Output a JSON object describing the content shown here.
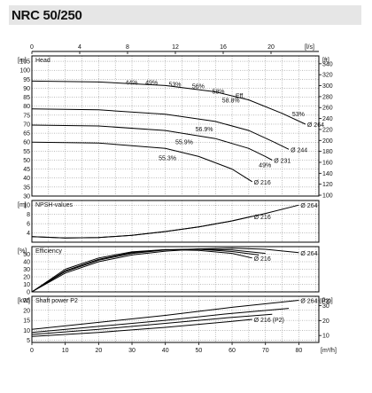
{
  "header": {
    "title": "NRC 50/250"
  },
  "chart_data": {
    "type": "line",
    "top_axis": {
      "label": "[l/s]",
      "range": [
        0,
        24
      ],
      "ticks": [
        "0",
        "4",
        "8",
        "12",
        "16",
        "20"
      ],
      "tick_values": [
        0,
        4,
        8,
        12,
        16,
        20
      ]
    },
    "bottom_axis": {
      "label": "[m³/h]",
      "range": [
        0,
        86
      ],
      "ticks": [
        "0",
        "10",
        "20",
        "30",
        "40",
        "50",
        "60",
        "70",
        "80"
      ],
      "tick_values": [
        0,
        10,
        20,
        30,
        40,
        50,
        60,
        70,
        80
      ]
    },
    "panels": [
      {
        "id": "head",
        "title": "Head",
        "left_unit": "[m]",
        "right_unit": "[ft]",
        "ylim": [
          30,
          108
        ],
        "left_ticks": [
          "30",
          "35",
          "40",
          "45",
          "50",
          "55",
          "60",
          "65",
          "70",
          "75",
          "80",
          "85",
          "90",
          "95",
          "100",
          "105"
        ],
        "left_tick_values": [
          30,
          35,
          40,
          45,
          50,
          55,
          60,
          65,
          70,
          75,
          80,
          85,
          90,
          95,
          100,
          105
        ],
        "right_ticks": [
          "100",
          "120",
          "140",
          "160",
          "180",
          "200",
          "220",
          "240",
          "260",
          "280",
          "300",
          "320",
          "340"
        ],
        "right_tick_values": [
          30.48,
          36.58,
          42.67,
          48.77,
          54.86,
          60.96,
          67.06,
          73.15,
          79.25,
          85.34,
          91.44,
          97.54,
          103.63
        ],
        "series": [
          {
            "name": "Ø 264",
            "x": [
              0,
              20,
              40,
              55,
              65,
              75,
              82
            ],
            "y": [
              94,
              93.5,
              91.5,
              88,
              83.5,
              76,
              70
            ]
          },
          {
            "name": "Ø 244",
            "x": [
              0,
              20,
              40,
              55,
              65,
              72,
              77
            ],
            "y": [
              78.5,
              78,
              75.5,
              71.5,
              66.5,
              60.5,
              56
            ]
          },
          {
            "name": "Ø 231",
            "x": [
              0,
              20,
              40,
              55,
              65,
              70,
              72
            ],
            "y": [
              69.5,
              69,
              66.5,
              62,
              56.5,
              52,
              50
            ]
          },
          {
            "name": "Ø 216",
            "x": [
              0,
              20,
              40,
              50,
              60,
              66
            ],
            "y": [
              60,
              59.5,
              56.5,
              52,
              45,
              38
            ]
          }
        ],
        "efficiency_labels": [
          {
            "text": "44%",
            "x": 28,
            "y": 92
          },
          {
            "text": "49%",
            "x": 34,
            "y": 92
          },
          {
            "text": "53%",
            "x": 41,
            "y": 91
          },
          {
            "text": "56%",
            "x": 48,
            "y": 90
          },
          {
            "text": "58%",
            "x": 54,
            "y": 87
          },
          {
            "text": "58.8%",
            "x": 57,
            "y": 82
          },
          {
            "text": "Eff.",
            "x": 61,
            "y": 84.5
          },
          {
            "text": "56.9%",
            "x": 49,
            "y": 66
          },
          {
            "text": "55.9%",
            "x": 43,
            "y": 59
          },
          {
            "text": "55.3%",
            "x": 38,
            "y": 50
          },
          {
            "text": "53%",
            "x": 78,
            "y": 74.5
          },
          {
            "text": "49%",
            "x": 68,
            "y": 46
          }
        ]
      },
      {
        "id": "npsh",
        "title": "NPSH-values",
        "left_unit": "[m]",
        "ylim": [
          2,
          11
        ],
        "left_ticks": [
          "4",
          "6",
          "8",
          "10"
        ],
        "left_tick_values": [
          4,
          6,
          8,
          10
        ],
        "series": [
          {
            "name": "Ø 264",
            "x": [
              0,
              10,
              20,
              30,
              40,
              50,
              60,
              70,
              80
            ],
            "y": [
              3.2,
              2.9,
              3.0,
              3.5,
              4.3,
              5.3,
              6.6,
              8.2,
              10.0
            ]
          },
          {
            "name": "Ø 216",
            "x": [
              0,
              10,
              20,
              30,
              40,
              50,
              60,
              66
            ],
            "y": [
              3.2,
              2.9,
              3.0,
              3.5,
              4.3,
              5.3,
              6.6,
              7.6
            ]
          }
        ]
      },
      {
        "id": "efficiency",
        "title": "Efficiency",
        "left_unit": "[%]",
        "ylim": [
          0,
          60
        ],
        "left_ticks": [
          "0",
          "10",
          "20",
          "30",
          "40",
          "50"
        ],
        "left_tick_values": [
          0,
          10,
          20,
          30,
          40,
          50
        ],
        "series": [
          {
            "name": "Ø 264",
            "x": [
              0,
              10,
              20,
              30,
              40,
              50,
              60,
              70,
              80
            ],
            "y": [
              0,
              25,
              40,
              49,
              54,
              57,
              58,
              56.5,
              52
            ]
          },
          {
            "name": "",
            "x": [
              0,
              10,
              20,
              30,
              40,
              50,
              60,
              70
            ],
            "y": [
              0,
              27,
              42,
              51,
              55.5,
              57,
              55.5,
              51
            ]
          },
          {
            "name": "",
            "x": [
              0,
              10,
              20,
              30,
              40,
              50,
              60,
              68
            ],
            "y": [
              0,
              28,
              43,
              52,
              56,
              56.5,
              53.5,
              49
            ]
          },
          {
            "name": "Ø 216",
            "x": [
              0,
              10,
              20,
              30,
              40,
              50,
              60,
              66
            ],
            "y": [
              0,
              30,
              45,
              53,
              56,
              55,
              51,
              45
            ]
          }
        ]
      },
      {
        "id": "power",
        "title": "Shaft power P2",
        "left_unit": "[kW]",
        "right_unit": "[hp]",
        "ylim": [
          4,
          27
        ],
        "left_ticks": [
          "5",
          "10",
          "15",
          "20",
          "25"
        ],
        "left_tick_values": [
          5,
          10,
          15,
          20,
          25
        ],
        "right_ticks": [
          "10",
          "20",
          "30"
        ],
        "right_tick_values": [
          7.46,
          14.91,
          22.37
        ],
        "series": [
          {
            "name": "Ø 264 (P2)",
            "x": [
              0,
              20,
              40,
              60,
              80
            ],
            "y": [
              10.5,
              14,
              17.5,
              21.5,
              25
            ]
          },
          {
            "name": "",
            "x": [
              0,
              20,
              40,
              60,
              77
            ],
            "y": [
              9,
              12,
              15,
              18.5,
              21
            ]
          },
          {
            "name": "",
            "x": [
              0,
              20,
              40,
              60,
              72
            ],
            "y": [
              8,
              10.5,
              13.5,
              16.5,
              18
            ]
          },
          {
            "name": "Ø 216 (P2)",
            "x": [
              0,
              20,
              40,
              60,
              66
            ],
            "y": [
              7,
              9,
              11.5,
              14.5,
              15.5
            ]
          }
        ]
      }
    ],
    "grid": true
  }
}
